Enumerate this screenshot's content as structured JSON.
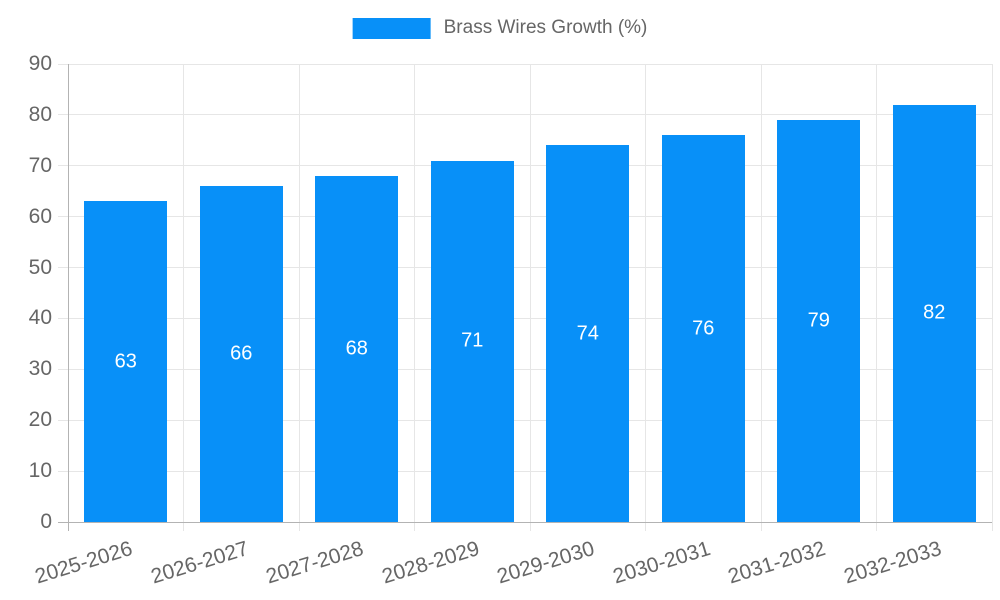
{
  "legend": {
    "label": "Brass Wires Growth (%)"
  },
  "chart_data": {
    "type": "bar",
    "title": "",
    "xlabel": "",
    "ylabel": "",
    "categories": [
      "2025-2026",
      "2026-2027",
      "2027-2028",
      "2028-2029",
      "2029-2030",
      "2030-2031",
      "2031-2032",
      "2032-2033"
    ],
    "series": [
      {
        "name": "Brass Wires Growth (%)",
        "values": [
          63,
          66,
          68,
          71,
          74,
          76,
          79,
          82
        ]
      }
    ],
    "ylim": [
      0,
      90
    ],
    "ytick_step": 10,
    "yticks": [
      0,
      10,
      20,
      30,
      40,
      50,
      60,
      70,
      80,
      90
    ],
    "grid": true,
    "legend_position": "top",
    "value_label_position": "inside-center",
    "x_tick_rotation_deg": -17,
    "colors": {
      "bar": "#0890f8",
      "value_label": "#ffffff",
      "grid": "#e6e6e6",
      "axis": "#b3b3b3",
      "tick_label": "#666666",
      "legend_label": "#666666",
      "background": "#ffffff"
    }
  }
}
